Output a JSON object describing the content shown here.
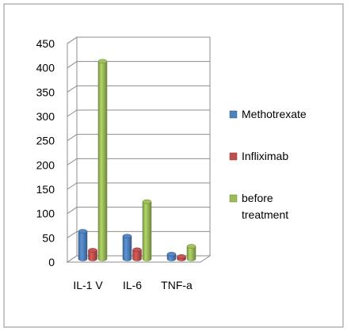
{
  "chart_data": {
    "type": "bar",
    "title": "",
    "xlabel": "",
    "ylabel": "",
    "categories": [
      "IL-1 V",
      "IL-6",
      "TNF-a"
    ],
    "ylim": [
      0,
      450
    ],
    "yticks": [
      0,
      50,
      100,
      150,
      200,
      250,
      300,
      350,
      400,
      450
    ],
    "grid": true,
    "three_d": true,
    "legend_position": "right",
    "series": [
      {
        "name": "Methotrexate",
        "values": [
          57,
          47,
          10
        ],
        "color": "#4f81bd"
      },
      {
        "name": "Infliximab",
        "values": [
          18,
          19,
          5
        ],
        "color": "#c0504d"
      },
      {
        "name": "before treatment",
        "values": [
          407,
          118,
          26
        ],
        "color": "#9bbb59"
      }
    ]
  }
}
